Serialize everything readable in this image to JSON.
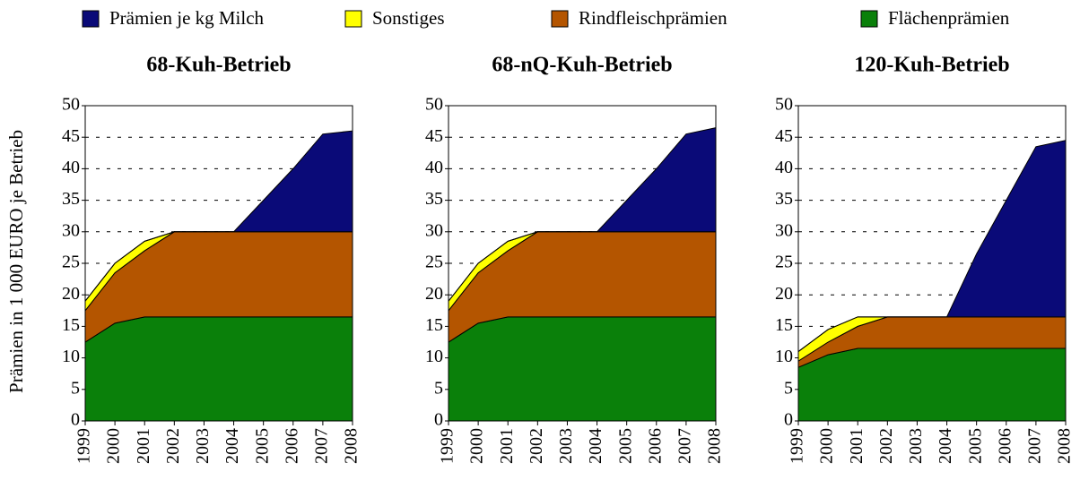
{
  "legend": [
    {
      "name": "Prämien je kg Milch",
      "color": "#0a0a78"
    },
    {
      "name": "Sonstiges",
      "color": "#ffff00"
    },
    {
      "name": "Rindfleischprämien",
      "color": "#b45500"
    },
    {
      "name": "Flächenprämien",
      "color": "#0a800a"
    }
  ],
  "ylabel": "Prämien in 1 000 EURO je Betrieb",
  "chart_data": [
    {
      "type": "area",
      "stacked": true,
      "title": "68-Kuh-Betrieb",
      "categories": [
        "1999",
        "2000",
        "2001",
        "2002",
        "2003",
        "2004",
        "2005",
        "2006",
        "2007",
        "2008"
      ],
      "ylim": [
        0,
        50
      ],
      "yticks": [
        0,
        5,
        10,
        15,
        20,
        25,
        30,
        35,
        40,
        45,
        50
      ],
      "grid": true,
      "series": [
        {
          "values": [
            0,
            0,
            0,
            0,
            0,
            0,
            5,
            10,
            15.5,
            16
          ]
        },
        {
          "values": [
            1.5,
            1.5,
            1.5,
            0,
            0,
            0,
            0,
            0,
            0,
            0
          ]
        },
        {
          "values": [
            5,
            8,
            10.5,
            13.5,
            13.5,
            13.5,
            13.5,
            13.5,
            13.5,
            13.5
          ]
        },
        {
          "values": [
            12.5,
            15.5,
            16.5,
            16.5,
            16.5,
            16.5,
            16.5,
            16.5,
            16.5,
            16.5
          ]
        }
      ]
    },
    {
      "type": "area",
      "stacked": true,
      "title": "68-nQ-Kuh-Betrieb",
      "categories": [
        "1999",
        "2000",
        "2001",
        "2002",
        "2003",
        "2004",
        "2005",
        "2006",
        "2007",
        "2008"
      ],
      "ylim": [
        0,
        50
      ],
      "yticks": [
        0,
        5,
        10,
        15,
        20,
        25,
        30,
        35,
        40,
        45,
        50
      ],
      "grid": true,
      "series": [
        {
          "values": [
            0,
            0,
            0,
            0,
            0,
            0,
            5,
            10,
            15.5,
            16.5
          ]
        },
        {
          "values": [
            1.5,
            1.5,
            1.5,
            0,
            0,
            0,
            0,
            0,
            0,
            0
          ]
        },
        {
          "values": [
            5,
            8,
            10.5,
            13.5,
            13.5,
            13.5,
            13.5,
            13.5,
            13.5,
            13.5
          ]
        },
        {
          "values": [
            12.5,
            15.5,
            16.5,
            16.5,
            16.5,
            16.5,
            16.5,
            16.5,
            16.5,
            16.5
          ]
        }
      ]
    },
    {
      "type": "area",
      "stacked": true,
      "title": "120-Kuh-Betrieb",
      "categories": [
        "1999",
        "2000",
        "2001",
        "2002",
        "2003",
        "2004",
        "2005",
        "2006",
        "2007",
        "2008"
      ],
      "ylim": [
        0,
        50
      ],
      "yticks": [
        0,
        5,
        10,
        15,
        20,
        25,
        30,
        35,
        40,
        45,
        50
      ],
      "grid": true,
      "series": [
        {
          "values": [
            0,
            0,
            0,
            0,
            0,
            0,
            10,
            18.5,
            27,
            28
          ]
        },
        {
          "values": [
            1.5,
            2,
            1.5,
            0,
            0,
            0,
            0,
            0,
            0,
            0
          ]
        },
        {
          "values": [
            1,
            2,
            3.5,
            5,
            5,
            5,
            5,
            5,
            5,
            5
          ]
        },
        {
          "values": [
            8.5,
            10.5,
            11.5,
            11.5,
            11.5,
            11.5,
            11.5,
            11.5,
            11.5,
            11.5
          ]
        }
      ]
    }
  ]
}
